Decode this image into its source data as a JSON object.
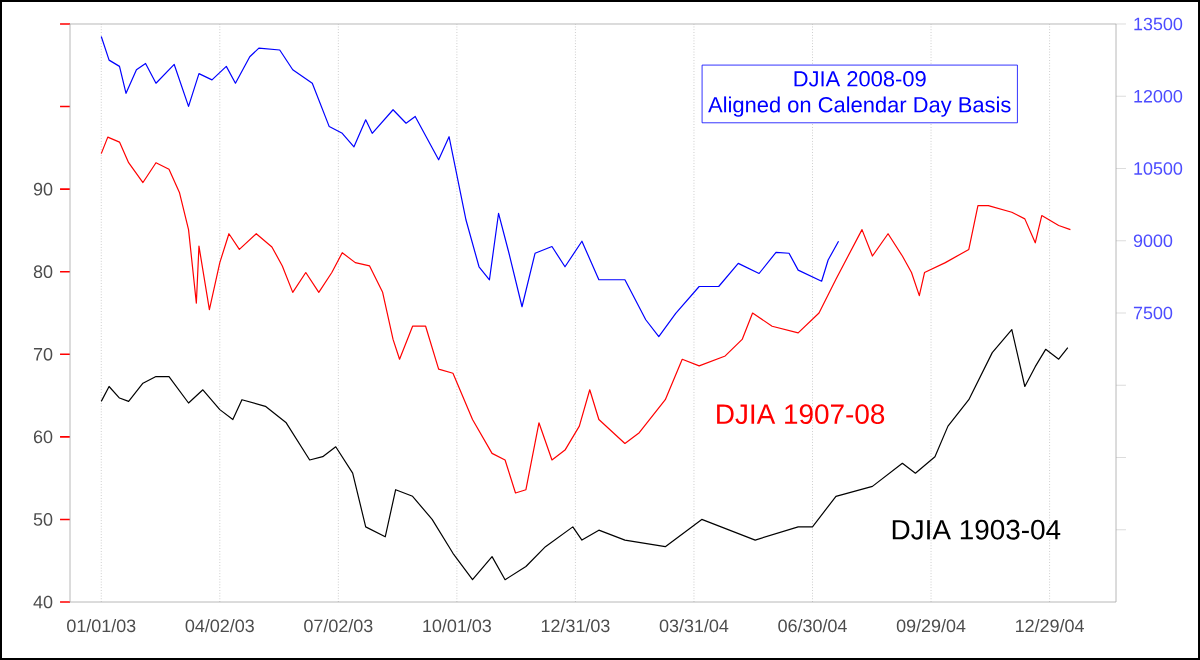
{
  "chart_data": {
    "type": "line",
    "subtitle": "Aligned on Calendar Day Basis",
    "xlim": [
      "2002-12-08",
      "2005-02-18"
    ],
    "xticks": [
      {
        "value": "2003-01-01",
        "label": "01/01/03"
      },
      {
        "value": "2003-04-02",
        "label": "04/02/03"
      },
      {
        "value": "2003-07-02",
        "label": "07/02/03"
      },
      {
        "value": "2003-10-01",
        "label": "10/01/03"
      },
      {
        "value": "2003-12-31",
        "label": "12/31/03"
      },
      {
        "value": "2004-03-31",
        "label": "03/31/04"
      },
      {
        "value": "2004-06-30",
        "label": "06/30/04"
      },
      {
        "value": "2004-09-29",
        "label": "09/29/04"
      },
      {
        "value": "2004-12-29",
        "label": "12/29/04"
      }
    ],
    "ylim": [
      40,
      110
    ],
    "yticks": [
      40,
      50,
      60,
      70,
      80,
      90,
      {
        "value": 100,
        "label": null
      },
      {
        "value": 110,
        "label": null
      }
    ],
    "y2lim": [
      1500,
      13500
    ],
    "y2ticks": [
      {
        "value": 3000,
        "label": null
      },
      {
        "value": 4500,
        "label": null
      },
      {
        "value": 6000,
        "label": null
      },
      7500,
      9000,
      10500,
      12000,
      13500
    ],
    "grid": "x",
    "series": [
      {
        "name": "DJIA 2008-09",
        "color": "#0000ff",
        "axis": "y2",
        "x": [
          "2003-01-01",
          "2003-01-07",
          "2003-01-15",
          "2003-01-20",
          "2003-01-28",
          "2003-02-04",
          "2003-02-12",
          "2003-02-26",
          "2003-03-09",
          "2003-03-17",
          "2003-03-27",
          "2003-04-07",
          "2003-04-14",
          "2003-04-25",
          "2003-05-02",
          "2003-05-18",
          "2003-05-28",
          "2003-06-12",
          "2003-06-25",
          "2003-07-05",
          "2003-07-14",
          "2003-07-23",
          "2003-07-28",
          "2003-08-13",
          "2003-08-23",
          "2003-08-30",
          "2003-09-17",
          "2003-09-25",
          "2003-10-08",
          "2003-10-18",
          "2003-10-26",
          "2003-11-02",
          "2003-11-10",
          "2003-11-20",
          "2003-11-30",
          "2003-12-13",
          "2003-12-23",
          "2004-01-05",
          "2004-01-18",
          "2004-02-07",
          "2004-02-23",
          "2004-03-04",
          "2004-03-17",
          "2004-04-04",
          "2004-04-19",
          "2004-05-04",
          "2004-05-20",
          "2004-06-02",
          "2004-06-12",
          "2004-06-19",
          "2004-07-07",
          "2004-07-12",
          "2004-07-20"
        ],
        "values": [
          13240,
          12750,
          12620,
          12060,
          12550,
          12680,
          12270,
          12660,
          11790,
          12470,
          12340,
          12620,
          12270,
          12820,
          13000,
          12960,
          12550,
          12270,
          11370,
          11230,
          10950,
          11510,
          11230,
          11720,
          11440,
          11580,
          10680,
          11160,
          9430,
          8460,
          8190,
          9570,
          8740,
          7630,
          8740,
          8880,
          8460,
          8990,
          8190,
          8190,
          7360,
          7010,
          7490,
          8050,
          8050,
          8530,
          8320,
          8760,
          8740,
          8390,
          8160,
          8600,
          8990
        ]
      },
      {
        "name": "DJIA 1907-08",
        "color": "#ff0000",
        "x": [
          "2003-01-01",
          "2003-01-06",
          "2003-01-15",
          "2003-01-22",
          "2003-02-02",
          "2003-02-12",
          "2003-02-22",
          "2003-03-02",
          "2003-03-09",
          "2003-03-15",
          "2003-03-17",
          "2003-03-25",
          "2003-04-02",
          "2003-04-09",
          "2003-04-17",
          "2003-04-30",
          "2003-05-12",
          "2003-05-20",
          "2003-05-28",
          "2003-06-07",
          "2003-06-17",
          "2003-06-27",
          "2003-07-05",
          "2003-07-15",
          "2003-07-26",
          "2003-08-05",
          "2003-08-13",
          "2003-08-18",
          "2003-08-28",
          "2003-09-07",
          "2003-09-17",
          "2003-09-28",
          "2003-10-13",
          "2003-10-28",
          "2003-11-07",
          "2003-11-15",
          "2003-11-23",
          "2003-12-03",
          "2003-12-13",
          "2003-12-23",
          "2004-01-03",
          "2004-01-11",
          "2004-01-18",
          "2004-02-07",
          "2004-02-18",
          "2004-03-09",
          "2004-03-22",
          "2004-04-04",
          "2004-04-24",
          "2004-05-07",
          "2004-05-15",
          "2004-05-30",
          "2004-06-19",
          "2004-07-05",
          "2004-07-18",
          "2004-08-07",
          "2004-08-15",
          "2004-08-27",
          "2004-09-07",
          "2004-09-14",
          "2004-09-20",
          "2004-09-24",
          "2004-10-10",
          "2004-10-28",
          "2004-11-04",
          "2004-11-12",
          "2004-11-30",
          "2004-12-10",
          "2004-12-18",
          "2004-12-23",
          "2005-01-05",
          "2005-01-14"
        ],
        "values": [
          94.3,
          96.3,
          95.7,
          93.2,
          90.8,
          93.2,
          92.4,
          89.6,
          85.1,
          76.2,
          83.1,
          75.4,
          81.1,
          84.6,
          82.7,
          84.6,
          83.0,
          80.7,
          77.5,
          79.9,
          77.5,
          79.9,
          82.3,
          81.1,
          80.7,
          77.5,
          71.8,
          69.4,
          73.4,
          73.4,
          68.2,
          67.7,
          62.1,
          58.0,
          57.2,
          53.2,
          53.6,
          61.7,
          57.2,
          58.4,
          61.3,
          65.7,
          62.1,
          59.2,
          60.5,
          64.5,
          69.4,
          68.6,
          69.8,
          71.8,
          75.0,
          73.4,
          72.6,
          75.0,
          79.1,
          85.1,
          81.9,
          84.6,
          81.9,
          79.9,
          77.1,
          79.9,
          81.1,
          82.7,
          88.0,
          88.0,
          87.2,
          86.4,
          83.5,
          86.8,
          85.6,
          85.1
        ]
      },
      {
        "name": "DJIA 1903-04",
        "color": "#000000",
        "x": [
          "2003-01-01",
          "2003-01-07",
          "2003-01-15",
          "2003-01-22",
          "2003-02-02",
          "2003-02-12",
          "2003-02-22",
          "2003-03-09",
          "2003-03-20",
          "2003-04-02",
          "2003-04-12",
          "2003-04-19",
          "2003-05-07",
          "2003-05-23",
          "2003-06-10",
          "2003-06-20",
          "2003-06-30",
          "2003-07-13",
          "2003-07-23",
          "2003-08-07",
          "2003-08-15",
          "2003-08-28",
          "2003-09-12",
          "2003-09-28",
          "2003-10-13",
          "2003-10-28",
          "2003-11-07",
          "2003-11-23",
          "2003-12-08",
          "2003-12-29",
          "2004-01-05",
          "2004-01-18",
          "2004-02-07",
          "2004-03-09",
          "2004-04-06",
          "2004-05-17",
          "2004-06-19",
          "2004-06-30",
          "2004-07-18",
          "2004-08-15",
          "2004-09-07",
          "2004-09-17",
          "2004-10-02",
          "2004-10-12",
          "2004-10-28",
          "2004-11-15",
          "2004-11-30",
          "2004-12-10",
          "2004-12-18",
          "2004-12-26",
          "2005-01-05",
          "2005-01-12"
        ],
        "values": [
          64.3,
          66.1,
          64.7,
          64.3,
          66.5,
          67.3,
          67.3,
          64.1,
          65.7,
          63.3,
          62.1,
          64.5,
          63.7,
          61.7,
          57.2,
          57.6,
          58.8,
          55.6,
          49.1,
          47.9,
          53.6,
          52.8,
          50.0,
          45.9,
          42.7,
          45.5,
          42.7,
          44.3,
          46.7,
          49.1,
          47.5,
          48.7,
          47.5,
          46.7,
          50.0,
          47.5,
          49.1,
          49.1,
          52.8,
          54.0,
          56.8,
          55.6,
          57.6,
          61.3,
          64.5,
          70.2,
          73.0,
          66.1,
          68.5,
          70.6,
          69.4,
          70.8
        ]
      }
    ]
  }
}
